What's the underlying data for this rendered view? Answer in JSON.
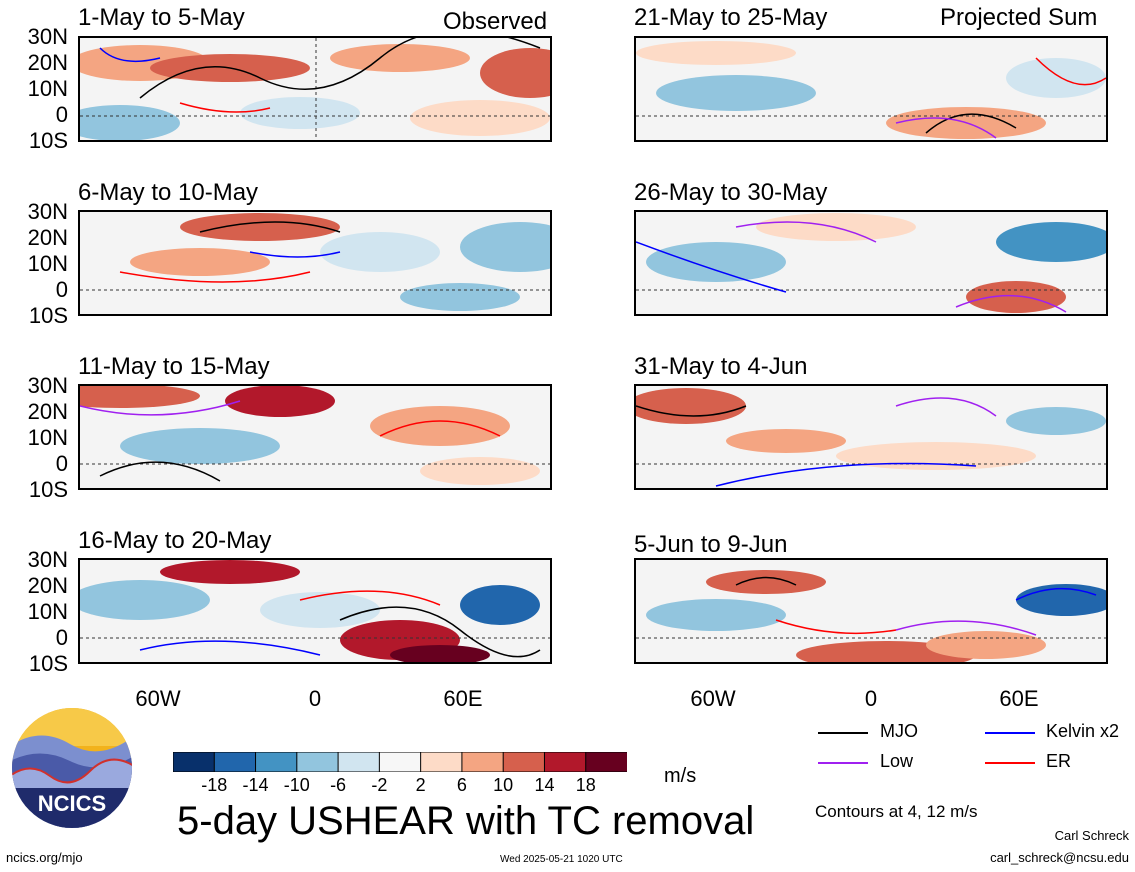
{
  "labels": {
    "observed": "Observed",
    "projected": "Projected Sum"
  },
  "panels": [
    {
      "title": "1-May to 5-May"
    },
    {
      "title": "6-May to 10-May"
    },
    {
      "title": "11-May to 15-May"
    },
    {
      "title": "16-May to 20-May"
    },
    {
      "title": "21-May to 25-May"
    },
    {
      "title": "26-May to 30-May"
    },
    {
      "title": "31-May to 4-Jun"
    },
    {
      "title": "5-Jun to 9-Jun"
    }
  ],
  "lat_ticks": [
    "30N",
    "20N",
    "10N",
    "0",
    "10S"
  ],
  "lon_ticks": [
    "60W",
    "0",
    "60E"
  ],
  "colorbar": {
    "ticks": [
      "-18",
      "-14",
      "-10",
      "-6",
      "-2",
      "2",
      "6",
      "10",
      "14",
      "18"
    ],
    "units": "m/s",
    "colors": [
      "#08306b",
      "#2166ac",
      "#4393c3",
      "#92c5de",
      "#d1e5f0",
      "#f7f7f7",
      "#fddbc7",
      "#f4a582",
      "#d6604d",
      "#b2182b",
      "#67001f"
    ]
  },
  "legend": [
    {
      "label": "MJO",
      "color": "#000000"
    },
    {
      "label": "Kelvin x2",
      "color": "#0000ff"
    },
    {
      "label": "Low",
      "color": "#a020f0"
    },
    {
      "label": "ER",
      "color": "#ff0000"
    }
  ],
  "main_title": "5-day USHEAR with TC removal",
  "contour_note": "Contours at 4, 12 m/s",
  "author": "Carl Schreck",
  "email": "carl_schreck@ncsu.edu",
  "url": "ncics.org/mjo",
  "timestamp": "Wed 2025-05-21 1020 UTC",
  "logo_text": "NCICS"
}
